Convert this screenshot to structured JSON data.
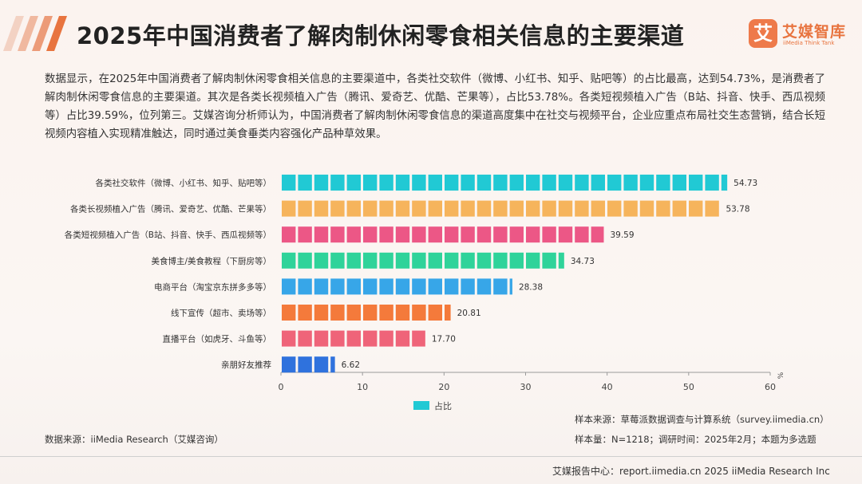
{
  "header": {
    "title": "2025年中国消费者了解肉制休闲零食相关信息的主要渠道",
    "brand_name": "艾媒智库",
    "brand_sub": "iiMedia Think Tank",
    "brand_logo_char": "艾",
    "accent_color": "#ee7a4a"
  },
  "summary": "数据显示，在2025年中国消费者了解肉制休闲零食相关信息的主要渠道中，各类社交软件（微博、小红书、知乎、贴吧等）的占比最高，达到54.73%，是消费者了解肉制休闲零食信息的主要渠道。其次是各类长视频植入广告（腾讯、爱奇艺、优酷、芒果等），占比53.78%。各类短视频植入广告（B站、抖音、快手、西瓜视频等）占比39.59%，位列第三。艾媒咨询分析师认为，中国消费者了解肉制休闲零食信息的渠道高度集中在社交与视频平台，企业应重点布局社交生态营销，结合长短视频内容植入实现精准触达，同时通过美食垂类内容强化产品种草效果。",
  "chart_data": {
    "type": "bar",
    "orientation": "horizontal",
    "categories": [
      "各类社交软件（微博、小红书、知乎、贴吧等）",
      "各类长视频植入广告（腾讯、爱奇艺、优酷、芒果等）",
      "各类短视频植入广告（B站、抖音、快手、西瓜视频等）",
      "美食博主/美食教程（下厨房等）",
      "电商平台（淘宝京东拼多多等）",
      "线下宣传（超市、卖场等）",
      "直播平台（如虎牙、斗鱼等）",
      "亲朋好友推荐"
    ],
    "series": [
      {
        "name": "占比",
        "values": [
          54.73,
          53.78,
          39.59,
          34.73,
          28.38,
          20.81,
          17.7,
          6.62
        ],
        "value_labels": [
          "54.73",
          "53.78",
          "39.59",
          "34.73",
          "28.38",
          "20.81",
          "17.70",
          "6.62"
        ]
      }
    ],
    "bar_colors": [
      "#21c9d4",
      "#f6b45c",
      "#ec5786",
      "#2fd39a",
      "#37a6e8",
      "#f47a3b",
      "#ef6479",
      "#2f72dd"
    ],
    "xlim": [
      0,
      60
    ],
    "xticks": [
      0,
      10,
      20,
      30,
      40,
      50,
      60
    ],
    "xtick_labels": [
      "0",
      "10",
      "20",
      "30",
      "40",
      "50",
      "60"
    ],
    "unit": "%",
    "legend_position": "bottom",
    "grid": false
  },
  "notes": {
    "data_source": "数据来源：iiMedia Research（艾媒咨询）",
    "sample_source": "样本来源：草莓派数据调查与计算系统（survey.iimedia.cn）",
    "sample_size": "样本量：N=1218；调研时间：2025年2月；本题为多选题",
    "footer": "艾媒报告中心：report.iimedia.cn  2025 iiMedia Research Inc"
  }
}
